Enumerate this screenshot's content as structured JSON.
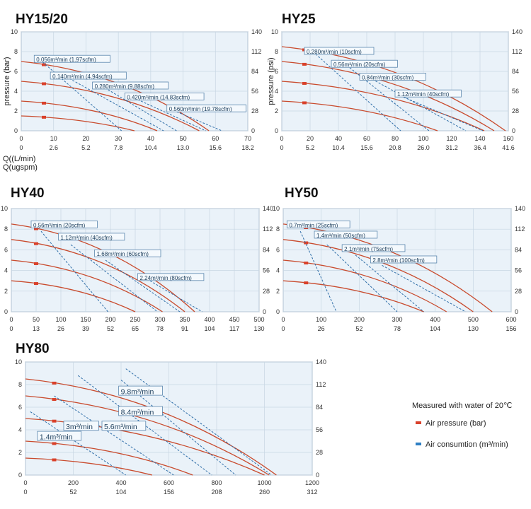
{
  "legend": {
    "note": "Measured with water of 20℃",
    "items": [
      {
        "label": "Air pressure (bar)",
        "color": "#d9412b"
      },
      {
        "label": "Air consumtion (m³/min)",
        "color": "#2f7fc4"
      }
    ]
  },
  "chart_data": [
    {
      "type": "line",
      "title": "HY15/20",
      "ylabel": "pressure (bar)",
      "ylabel2": "",
      "xlabel": "Q((L/min)",
      "xlabel2": "Q(ugspm)",
      "xlim": [
        0,
        70
      ],
      "ylim": [
        0,
        10
      ],
      "x_ticks": [
        "0",
        "10",
        "20",
        "30",
        "40",
        "50",
        "60",
        "70"
      ],
      "x2_ticks": [
        "0",
        "2.6",
        "5.2",
        "7.8",
        "10.4",
        "13.0",
        "15.6",
        "18.2"
      ],
      "y_ticks": [
        "0",
        "2",
        "4",
        "6",
        "8",
        "10"
      ],
      "y2_ticks": [
        "0",
        "28",
        "56",
        "84",
        "112",
        "140"
      ],
      "pressure_curves": [
        {
          "start": 7.0,
          "end_x": 58
        },
        {
          "start": 5.0,
          "end_x": 55
        },
        {
          "start": 3.0,
          "end_x": 42
        },
        {
          "start": 1.5,
          "end_x": 35
        }
      ],
      "air_lines": [
        {
          "label": "0.056m³/min (1.97scfm)",
          "x0": 5,
          "y0": 7.4,
          "x1": 31,
          "y1": 0
        },
        {
          "label": "0.140m³/min (4.94scfm)",
          "x0": 12,
          "y0": 5.8,
          "x1": 44,
          "y1": 0
        },
        {
          "label": "0.280m³/min (9.88scfm)",
          "x0": 24,
          "y0": 4.7,
          "x1": 48,
          "y1": 0
        },
        {
          "label": "0.420m³/min (14.83scfm)",
          "x0": 33,
          "y0": 3.6,
          "x1": 57,
          "y1": 0
        },
        {
          "label": "0.560m³/min (19.78scfm)",
          "x0": 46,
          "y0": 2.2,
          "x1": 62,
          "y1": 0
        }
      ],
      "labels": [
        {
          "text": "0.056m³/min (1.97scfm)",
          "x": 4,
          "y": 7.2
        },
        {
          "text": "0.140m³/min (4.94scfm)",
          "x": 9,
          "y": 5.5
        },
        {
          "text": "0.280m³/min (9.88scfm)",
          "x": 22,
          "y": 4.5
        },
        {
          "text": "0.420m³/min (14.83scfm)",
          "x": 32,
          "y": 3.4
        },
        {
          "text": "0.560m³/min (19.78scfm)",
          "x": 45,
          "y": 2.2
        }
      ]
    },
    {
      "type": "line",
      "title": "HY25",
      "ylabel": "pressure (psi)",
      "ylabel2": "",
      "xlabel": "",
      "xlabel2": "",
      "xlim": [
        0,
        160
      ],
      "ylim": [
        0,
        10
      ],
      "x_ticks": [
        "0",
        "20",
        "40",
        "60",
        "80",
        "100",
        "120",
        "140",
        "160"
      ],
      "x2_ticks": [
        "0",
        "5.2",
        "10.4",
        "15.6",
        "20.8",
        "26.0",
        "31.2",
        "36.4",
        "41.6"
      ],
      "y_ticks": [
        "0",
        "2",
        "4",
        "6",
        "8",
        "10"
      ],
      "y2_ticks": [
        "0",
        "28",
        "56",
        "84",
        "112",
        "140"
      ],
      "pressure_curves": [
        {
          "start": 8.5,
          "end_x": 158
        },
        {
          "start": 7.0,
          "end_x": 150
        },
        {
          "start": 5.0,
          "end_x": 143
        },
        {
          "start": 3.0,
          "end_x": 110
        }
      ],
      "air_lines": [
        {
          "label": "0.280m³/min (10scfm)",
          "x0": 22,
          "y0": 8.0,
          "x1": 84,
          "y1": 0
        },
        {
          "label": "0.56m³/min (20scfm)",
          "x0": 46,
          "y0": 6.6,
          "x1": 104,
          "y1": 0
        },
        {
          "label": "0.84m³/min (30scfm)",
          "x0": 64,
          "y0": 5.2,
          "x1": 130,
          "y1": 0
        },
        {
          "label": "1.12m³/min (40scfm)",
          "x0": 86,
          "y0": 3.4,
          "x1": 142,
          "y1": 0
        }
      ],
      "labels": [
        {
          "text": "0.280m³/min (10scfm)",
          "x": 16,
          "y": 8.0
        },
        {
          "text": "0.56m³/min (20scfm)",
          "x": 35,
          "y": 6.7
        },
        {
          "text": "0.84m³/min (30scfm)",
          "x": 55,
          "y": 5.4
        },
        {
          "text": "1.12m³/min (40scfm)",
          "x": 80,
          "y": 3.7
        }
      ]
    },
    {
      "type": "line",
      "title": "HY40",
      "ylabel": "",
      "ylabel2": "",
      "xlabel": "",
      "xlabel2": "",
      "xlim": [
        0,
        500
      ],
      "ylim": [
        0,
        10
      ],
      "x_ticks": [
        "0",
        "50",
        "100",
        "150",
        "200",
        "250",
        "300",
        "350",
        "400",
        "450",
        "500"
      ],
      "x2_ticks": [
        "0",
        "13",
        "26",
        "39",
        "52",
        "65",
        "78",
        "91",
        "104",
        "117",
        "130"
      ],
      "y_ticks": [
        "0",
        "2",
        "4",
        "6",
        "8",
        "10"
      ],
      "y2_ticks": [
        "0",
        "28",
        "56",
        "84",
        "112",
        "140"
      ],
      "pressure_curves": [
        {
          "start": 8.5,
          "end_x": 370
        },
        {
          "start": 7.0,
          "end_x": 350
        },
        {
          "start": 5.0,
          "end_x": 305
        },
        {
          "start": 3.0,
          "end_x": 250
        }
      ],
      "air_lines": [
        {
          "label": "0.56m³/min (20scfm)",
          "x0": 60,
          "y0": 7.8,
          "x1": 195,
          "y1": 0
        },
        {
          "label": "1.12m³/min (40scfm)",
          "x0": 120,
          "y0": 6.5,
          "x1": 295,
          "y1": 0
        },
        {
          "label": "1.68m³/min (60scfm)",
          "x0": 190,
          "y0": 5.0,
          "x1": 340,
          "y1": 0
        },
        {
          "label": "2.24m³/min (80scfm)",
          "x0": 280,
          "y0": 3.0,
          "x1": 385,
          "y1": 0
        }
      ],
      "labels": [
        {
          "text": "0.56m³/min (20scfm)",
          "x": 40,
          "y": 8.4
        },
        {
          "text": "1.12m³/min (40scfm)",
          "x": 95,
          "y": 7.2
        },
        {
          "text": "1.68m³/min (60scfm)",
          "x": 168,
          "y": 5.6
        },
        {
          "text": "2.24m³/min (80scfm)",
          "x": 255,
          "y": 3.3
        }
      ]
    },
    {
      "type": "line",
      "title": "HY50",
      "ylabel": "",
      "ylabel2": "",
      "xlabel": "",
      "xlabel2": "",
      "xlim": [
        0,
        600
      ],
      "ylim": [
        0,
        10
      ],
      "x_ticks": [
        "0",
        "100",
        "200",
        "300",
        "400",
        "500",
        "600"
      ],
      "x2_ticks": [
        "0",
        "26",
        "52",
        "78",
        "104",
        "130",
        "156"
      ],
      "y_ticks": [
        "0",
        "2",
        "4",
        "6",
        "8",
        "10"
      ],
      "y2_ticks": [
        "0",
        "28",
        "56",
        "84",
        "112",
        "140"
      ],
      "pressure_curves": [
        {
          "start": 8.5,
          "end_x": 550
        },
        {
          "start": 7.0,
          "end_x": 500
        },
        {
          "start": 5.0,
          "end_x": 430
        },
        {
          "start": 3.0,
          "end_x": 370
        }
      ],
      "air_lines": [
        {
          "label": "0.7m³/min (25scfm)",
          "x0": 45,
          "y0": 7.8,
          "x1": 140,
          "y1": 0
        },
        {
          "label": "1.4m³/min (50scfm)",
          "x0": 115,
          "y0": 6.5,
          "x1": 300,
          "y1": 0
        },
        {
          "label": "2.1m³/min (75scfm)",
          "x0": 190,
          "y0": 5.5,
          "x1": 370,
          "y1": 0
        },
        {
          "label": "2.8m³/min (100scfm)",
          "x0": 260,
          "y0": 4.5,
          "x1": 480,
          "y1": 0
        }
      ],
      "labels": [
        {
          "text": "0.7m³/min (25scfm)",
          "x": 10,
          "y": 8.4
        },
        {
          "text": "1.4m³/min (50scfm)",
          "x": 82,
          "y": 7.4
        },
        {
          "text": "2.1m³/min (75scfm)",
          "x": 155,
          "y": 6.1
        },
        {
          "text": "2.8m³/min (100scfm)",
          "x": 230,
          "y": 5.0
        }
      ]
    },
    {
      "type": "line",
      "title": "HY80",
      "ylabel": "",
      "ylabel2": "",
      "xlabel": "",
      "xlabel2": "",
      "xlim": [
        0,
        1200
      ],
      "ylim": [
        0,
        10
      ],
      "x_ticks": [
        "0",
        "200",
        "400",
        "600",
        "800",
        "1000",
        "1200"
      ],
      "x2_ticks": [
        "0",
        "52",
        "104",
        "156",
        "208",
        "260",
        "312"
      ],
      "y_ticks": [
        "0",
        "2",
        "4",
        "6",
        "8",
        "10"
      ],
      "y2_ticks": [
        "0",
        "28",
        "56",
        "84",
        "112",
        "140"
      ],
      "pressure_curves": [
        {
          "start": 8.5,
          "end_x": 1050
        },
        {
          "start": 7.0,
          "end_x": 1020
        },
        {
          "start": 5.0,
          "end_x": 1000
        },
        {
          "start": 3.0,
          "end_x": 700
        },
        {
          "start": 1.5,
          "end_x": 530
        }
      ],
      "air_lines": [
        {
          "label": "1.4m³/min",
          "x0": 20,
          "y0": 5.6,
          "x1": 420,
          "y1": 0
        },
        {
          "label": "3m³/min",
          "x0": 120,
          "y0": 7.0,
          "x1": 620,
          "y1": 0
        },
        {
          "label": "5.6m³/min",
          "x0": 220,
          "y0": 8.8,
          "x1": 780,
          "y1": 0
        },
        {
          "label": "8.4m³/min",
          "x0": 400,
          "y0": 8.4,
          "x1": 880,
          "y1": 0
        },
        {
          "label": "9.8m³/min",
          "x0": 420,
          "y0": 9.4,
          "x1": 1030,
          "y1": 0
        }
      ],
      "labels": [
        {
          "text": "9.8m³/min",
          "x": 390,
          "y": 7.4
        },
        {
          "text": "8.4m³/min",
          "x": 390,
          "y": 5.6
        },
        {
          "text": "3m³/min",
          "x": 160,
          "y": 4.3
        },
        {
          "text": "5.6m³/min",
          "x": 320,
          "y": 4.3
        },
        {
          "text": "1.4m³/min",
          "x": 50,
          "y": 3.4
        }
      ]
    }
  ]
}
